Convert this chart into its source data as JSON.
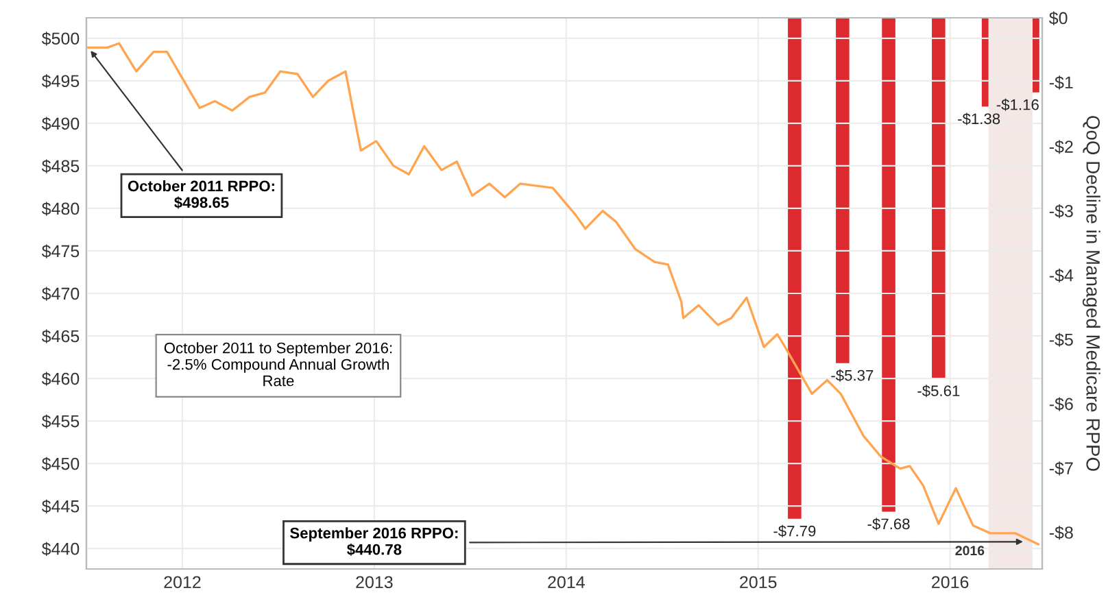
{
  "chart_data": {
    "type": "line",
    "y2label": "QoQ Decline in Managed Medicare RPPO",
    "xlim": [
      2011.5,
      2016.48
    ],
    "xticks": [
      2012,
      2013,
      2014,
      2015,
      2016
    ],
    "ylim": [
      437.6,
      502.4
    ],
    "yticks": [
      {
        "value": 440,
        "label": "$440"
      },
      {
        "value": 445,
        "label": "$445"
      },
      {
        "value": 450,
        "label": "$450"
      },
      {
        "value": 455,
        "label": "$455"
      },
      {
        "value": 460,
        "label": "$460"
      },
      {
        "value": 465,
        "label": "$465"
      },
      {
        "value": 470,
        "label": "$470"
      },
      {
        "value": 475,
        "label": "$475"
      },
      {
        "value": 480,
        "label": "$480"
      },
      {
        "value": 485,
        "label": "$485"
      },
      {
        "value": 490,
        "label": "$490"
      },
      {
        "value": 495,
        "label": "$495"
      },
      {
        "value": 500,
        "label": "$500"
      }
    ],
    "y2lim": [
      -8.57,
      0
    ],
    "y2ticks": [
      {
        "value": 0,
        "label": "$0"
      },
      {
        "value": -1,
        "label": "-$1"
      },
      {
        "value": -2,
        "label": "-$2"
      },
      {
        "value": -3,
        "label": "-$3"
      },
      {
        "value": -4,
        "label": "-$4"
      },
      {
        "value": -5,
        "label": "-$5"
      },
      {
        "value": -6,
        "label": "-$6"
      },
      {
        "value": -7,
        "label": "-$7"
      },
      {
        "value": -8,
        "label": "-$8"
      }
    ],
    "grid": true,
    "legend": false,
    "series": [
      {
        "color": "#ffa552",
        "x": [
          2011.51,
          2011.61,
          2011.67,
          2011.76,
          2011.85,
          2011.92,
          2012.09,
          2012.17,
          2012.26,
          2012.35,
          2012.43,
          2012.51,
          2012.6,
          2012.68,
          2012.76,
          2012.85,
          2012.93,
          2013.01,
          2013.1,
          2013.18,
          2013.26,
          2013.35,
          2013.43,
          2013.51,
          2013.6,
          2013.68,
          2013.76,
          2013.93,
          2014.05,
          2014.1,
          2014.19,
          2014.26,
          2014.36,
          2014.46,
          2014.53,
          2014.6,
          2014.61,
          2014.69,
          2014.79,
          2014.86,
          2014.94,
          2015.03,
          2015.1,
          2015.14,
          2015.28,
          2015.36,
          2015.43,
          2015.55,
          2015.64,
          2015.74,
          2015.79,
          2015.86,
          2015.94,
          2016.03,
          2016.12,
          2016.21,
          2016.34,
          2016.46
        ],
        "values": [
          498.9,
          498.9,
          499.4,
          496.1,
          498.4,
          498.4,
          491.8,
          492.6,
          491.5,
          493.1,
          493.6,
          496.1,
          495.8,
          493.1,
          495.0,
          496.1,
          486.8,
          487.9,
          485.0,
          484.0,
          487.3,
          484.5,
          485.5,
          481.5,
          482.9,
          481.3,
          482.9,
          482.4,
          479.2,
          477.6,
          479.7,
          478.4,
          475.2,
          473.7,
          473.4,
          469.0,
          467.1,
          468.6,
          466.3,
          467.1,
          469.5,
          463.7,
          465.2,
          463.7,
          458.2,
          459.8,
          458.2,
          453.2,
          450.8,
          449.4,
          449.7,
          447.4,
          442.9,
          447.1,
          442.7,
          441.8,
          441.8,
          440.5
        ]
      },
      {
        "type": "bar",
        "axis": "y2",
        "color": "#dc2a2e",
        "x": [
          2015.19,
          2015.44,
          2015.68,
          2015.94,
          2016.2,
          2016.43
        ],
        "values": [
          -7.79,
          -5.37,
          -7.68,
          -5.61,
          -1.38,
          -1.16
        ],
        "value_labels": [
          "-$7.79",
          "-$5.37",
          "-$7.68",
          "-$5.61",
          "-$1.38",
          "-$1.16"
        ]
      }
    ],
    "bands": [
      {
        "axis": "x",
        "from": 2016.2,
        "to": 2016.43,
        "label": "2016",
        "color": "#f3e8e6"
      }
    ],
    "annotations": [
      {
        "text": "October 2011 RPPO:\n$498.65",
        "x": 2011.51,
        "y": 498.9
      },
      {
        "text": "September 2016 RPPO:\n$440.78",
        "x": 2016.4,
        "y": 440.8
      },
      "October 2011 to September 2016:\n-2.5% Compound Annual Growth\nRate"
    ]
  }
}
